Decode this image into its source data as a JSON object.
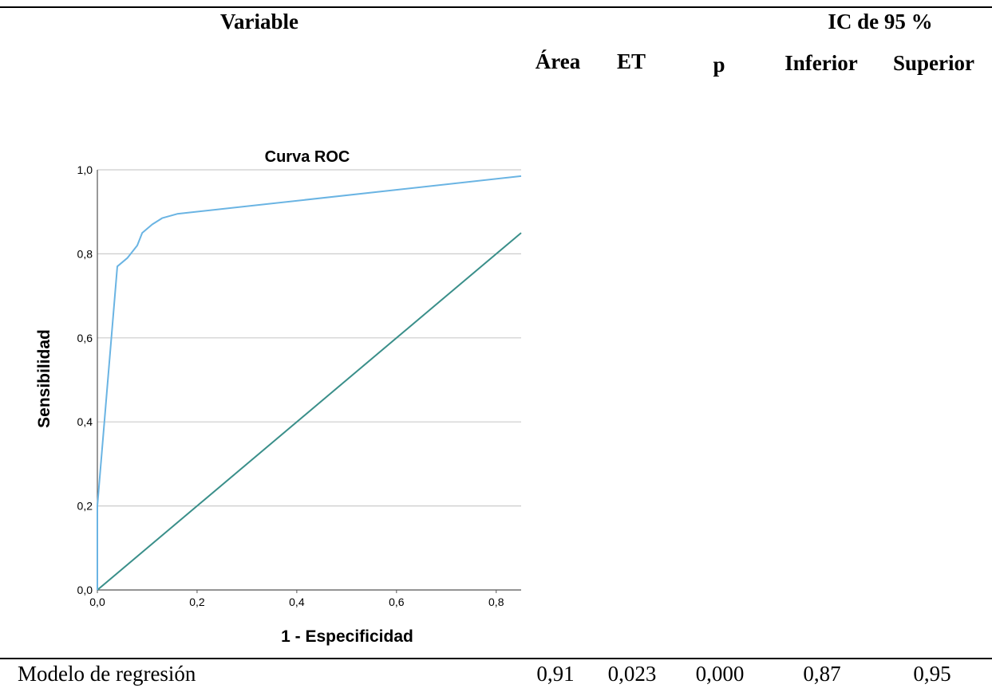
{
  "table": {
    "headers": {
      "variable": "Variable",
      "ci_group": "IC de 95 %",
      "area": "Área",
      "se": "ET",
      "p": "p",
      "lower": "Inferior",
      "upper": "Superior"
    },
    "rows": [
      {
        "variable": "Modelo de regresión",
        "area": "0,91",
        "se": "0,023",
        "p": "0,000",
        "lower": "0,87",
        "upper": "0,95"
      }
    ]
  },
  "chart_data": {
    "type": "line",
    "title": "Curva ROC",
    "xlabel": "1 - Especificidad",
    "ylabel": "Sensibilidad",
    "xlim": [
      0,
      0.85
    ],
    "ylim": [
      0,
      1.0
    ],
    "x_ticks": [
      "0,0",
      "0,2",
      "0,4",
      "0,6",
      "0,8"
    ],
    "y_ticks": [
      "0,0",
      "0,2",
      "0,4",
      "0,6",
      "0,8",
      "1,0"
    ],
    "grid": "horizontal",
    "colors": {
      "roc": "#6ab4e3",
      "reference": "#3a8f8a",
      "grid": "#cccccc"
    },
    "series": [
      {
        "x": [
          0.0,
          0.0,
          0.04,
          0.06,
          0.08,
          0.09,
          0.11,
          0.13,
          0.16,
          0.85
        ],
        "y": [
          0.0,
          0.2,
          0.77,
          0.79,
          0.82,
          0.85,
          0.87,
          0.885,
          0.895,
          0.985
        ]
      },
      {
        "x": [
          0.0,
          0.85
        ],
        "y": [
          0.0,
          0.85
        ]
      }
    ]
  }
}
